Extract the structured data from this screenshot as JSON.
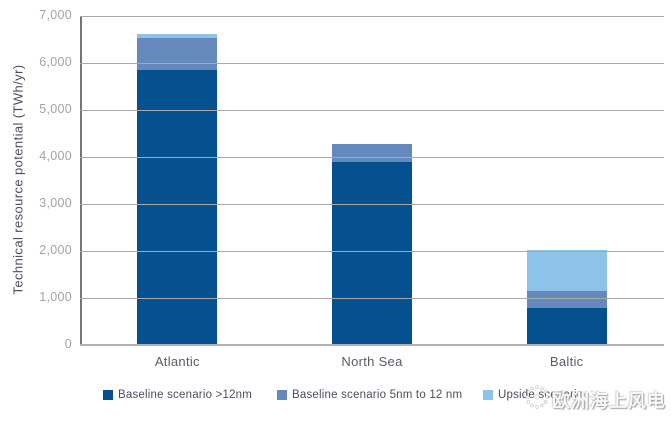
{
  "chart_data": {
    "type": "bar",
    "stacked": true,
    "title": "",
    "xlabel": "",
    "ylabel": "Technical resource potential (TWh/yr)",
    "categories": [
      "Atlantic",
      "North Sea",
      "Baltic"
    ],
    "series": [
      {
        "name": "Baseline scenario >12nm",
        "color": "#05508e",
        "values": [
          5850,
          3890,
          790
        ]
      },
      {
        "name": "Baseline scenario 5nm to 12 nm",
        "color": "#6589bd",
        "values": [
          680,
          390,
          350
        ]
      },
      {
        "name": "Upside scenario",
        "color": "#8dc3e9",
        "values": [
          90,
          0,
          880
        ]
      }
    ],
    "ylim": [
      0,
      7000
    ],
    "ytick_step": 1000,
    "ytick_labels": [
      "0",
      "1,000",
      "2,000",
      "3,000",
      "4,000",
      "5,000",
      "6,000",
      "7,000"
    ],
    "grid": true,
    "legend_position": "bottom"
  },
  "colors": {
    "gridline": "#a9a9a9",
    "axis_line": "#757575",
    "tick_label": "#a3a3a8",
    "category_label": "#5b5b68",
    "axis_title": "#4d4d5f",
    "legend_text": "#4d4d5f",
    "background": "#ffffff"
  },
  "watermark": {
    "logo": "dotted-circle-logo",
    "text": "欧洲海上风电"
  }
}
